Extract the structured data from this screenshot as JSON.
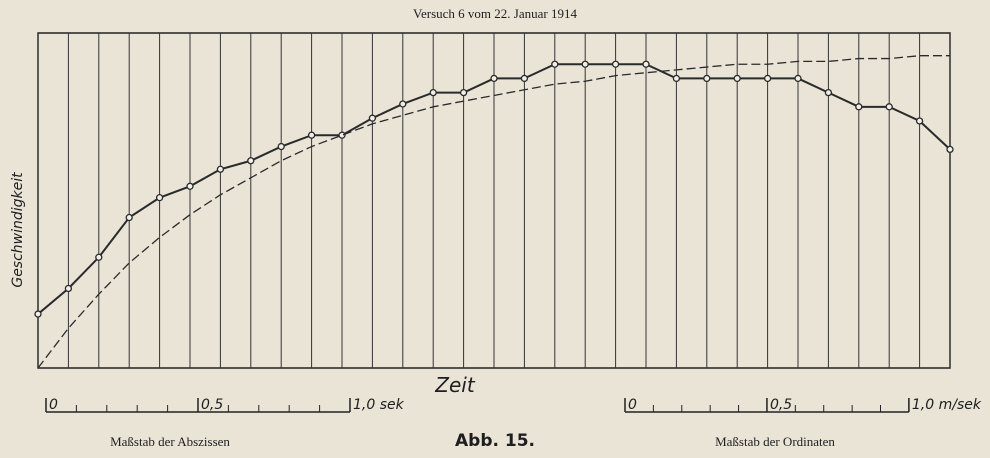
{
  "chart_data": {
    "type": "line",
    "title": "Versuch 6 vom 22. Januar 1914",
    "y_label": "Geschwindigkeit",
    "x_label": "Zeit",
    "caption": "Abb. 15.",
    "x": [
      0,
      0.1,
      0.2,
      0.3,
      0.4,
      0.5,
      0.6,
      0.7,
      0.8,
      0.9,
      1.0,
      1.1,
      1.2,
      1.3,
      1.4,
      1.5,
      1.6,
      1.7,
      1.8,
      1.9,
      2.0,
      2.1,
      2.2,
      2.3,
      2.4,
      2.5,
      2.6,
      2.7,
      2.8,
      2.9,
      3.0
    ],
    "series": [
      {
        "color": "#2a2a2a",
        "style": "solid",
        "markers": true,
        "values": [
          0.19,
          0.28,
          0.39,
          0.53,
          0.6,
          0.64,
          0.7,
          0.73,
          0.78,
          0.82,
          0.82,
          0.88,
          0.93,
          0.97,
          0.97,
          1.02,
          1.02,
          1.07,
          1.07,
          1.07,
          1.07,
          1.02,
          1.02,
          1.02,
          1.02,
          1.02,
          0.97,
          0.92,
          0.92,
          0.87,
          0.77
        ]
      },
      {
        "color": "#2a2a2a",
        "style": "dashed",
        "markers": false,
        "values": [
          0,
          0.14,
          0.26,
          0.37,
          0.46,
          0.54,
          0.61,
          0.67,
          0.73,
          0.78,
          0.82,
          0.86,
          0.89,
          0.92,
          0.94,
          0.96,
          0.98,
          1.0,
          1.01,
          1.03,
          1.04,
          1.05,
          1.06,
          1.07,
          1.07,
          1.08,
          1.08,
          1.09,
          1.09,
          1.1,
          1.1
        ]
      }
    ],
    "xlim": [
      0,
      3.0
    ],
    "ylim": [
      0,
      1.18
    ],
    "xticks": [
      0,
      0.1,
      0.2,
      0.3,
      0.4,
      0.5,
      0.6,
      0.7,
      0.8,
      0.9,
      1.0,
      1.1,
      1.2,
      1.3,
      1.4,
      1.5,
      1.6,
      1.7,
      1.8,
      1.9,
      2.0,
      2.1,
      2.2,
      2.3,
      2.4,
      2.5,
      2.6,
      2.7,
      2.8,
      2.9,
      3.0
    ],
    "grid": true,
    "abscissa_scale": {
      "label": "Maßstab der Abszissen",
      "ticks": [
        {
          "value": 0,
          "label": "0"
        },
        {
          "value": 0.5,
          "label": "0,5"
        },
        {
          "value": 1.0,
          "label": "1,0 sek"
        }
      ]
    },
    "ordinate_scale": {
      "label": "Maßstab der Ordinaten",
      "ticks": [
        {
          "value": 0,
          "label": "0"
        },
        {
          "value": 0.5,
          "label": "0,5"
        },
        {
          "value": 1.0,
          "label": "1,0 m/sek"
        }
      ]
    }
  }
}
